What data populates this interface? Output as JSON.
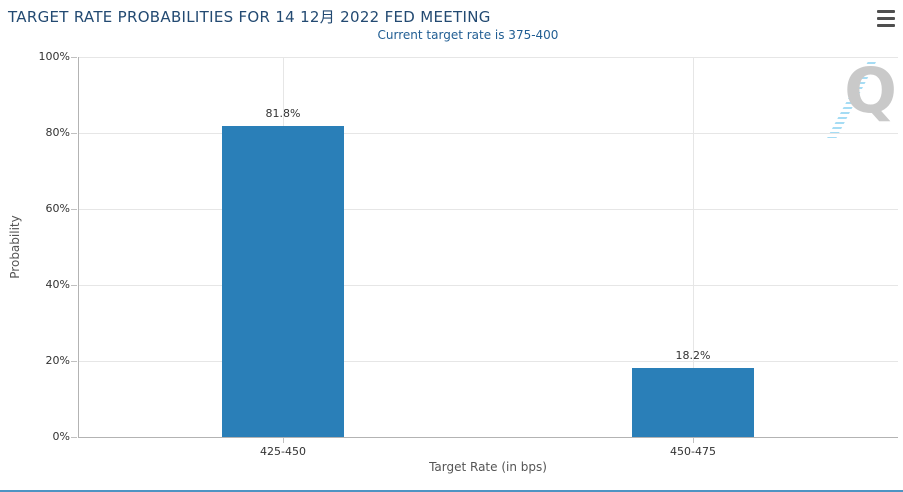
{
  "header": {
    "menu_icon": "hamburger-menu-icon"
  },
  "chart_data": {
    "type": "bar",
    "title": "TARGET RATE PROBABILITIES FOR 14 12月 2022 FED MEETING",
    "subtitle": "Current target rate is 375-400",
    "categories": [
      "425-450",
      "450-475"
    ],
    "values": [
      81.8,
      18.2
    ],
    "data_labels": [
      "81.8%",
      "18.2%"
    ],
    "xlabel": "Target Rate (in bps)",
    "ylabel": "Probability",
    "ylim": [
      0,
      100
    ],
    "ytick_values": [
      0,
      20,
      40,
      60,
      80,
      100
    ],
    "ytick_labels": [
      "0%",
      "20%",
      "40%",
      "60%",
      "80%",
      "100%"
    ],
    "grid": true,
    "legend_position": "none"
  },
  "watermark": {
    "letter": "Q"
  },
  "colors": {
    "title": "#234a72",
    "subtitle": "#215e93",
    "bar": "#2a7fb8",
    "grid_line": "#e6e6e6",
    "axis_line": "#b3b3b3",
    "tick": "#c0c0c0",
    "label": "#333333",
    "axis_title": "#555555",
    "accent_line": "#4e94c3",
    "menu_icon": "#4f4f4f",
    "watermark_letter": "#c9c9c9",
    "watermark_stripes": "#a5dcf4"
  }
}
